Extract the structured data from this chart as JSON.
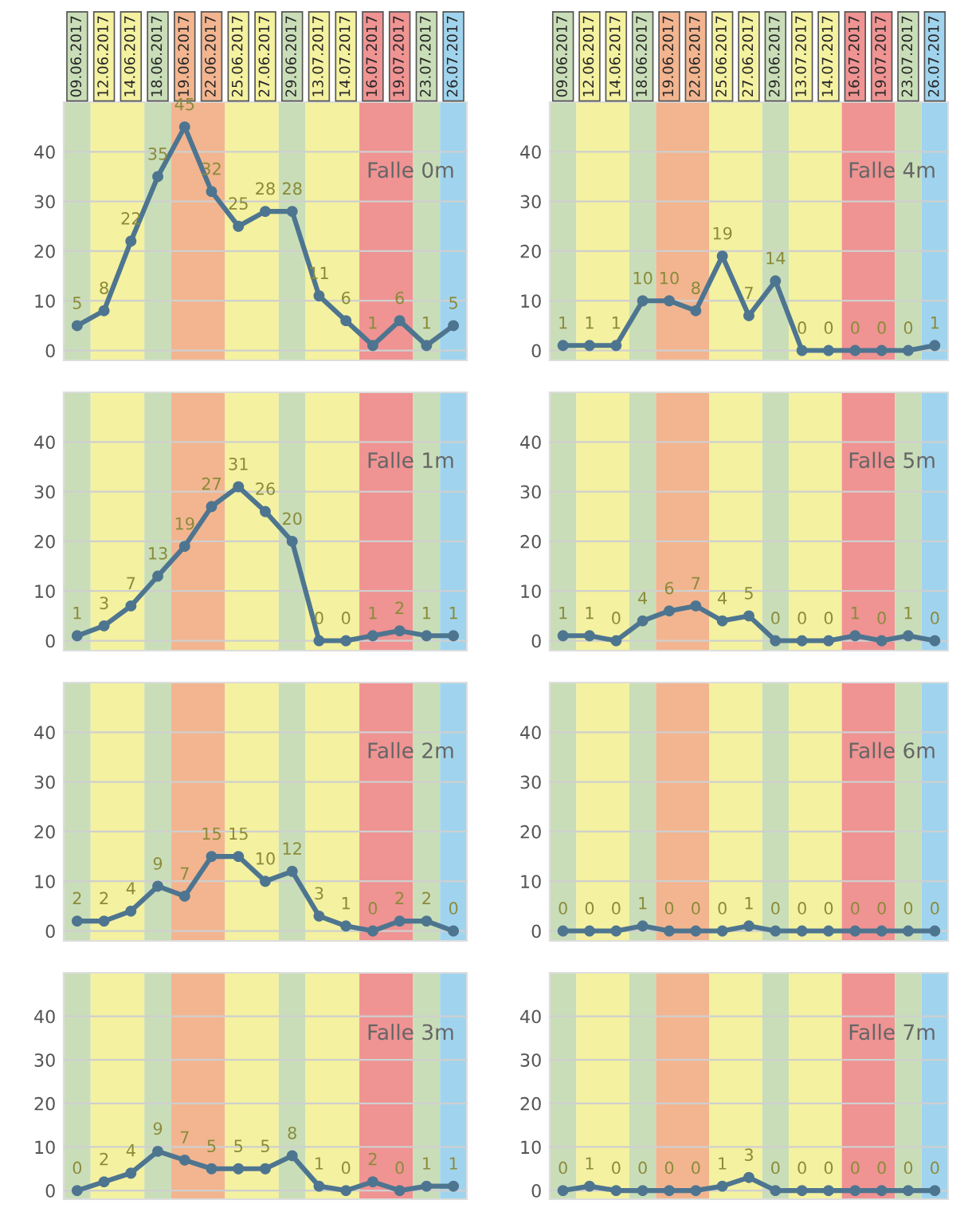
{
  "chart_data": [
    {
      "type": "line",
      "title": "Falle 0m",
      "categories": [
        "09.06.2017",
        "12.06.2017",
        "14.06.2017",
        "18.06.2017",
        "19.06.2017",
        "22.06.2017",
        "25.06.2017",
        "27.06.2017",
        "29.06.2017",
        "13.07.2017",
        "14.07.2017",
        "16.07.2017",
        "19.07.2017",
        "23.07.2017",
        "26.07.2017"
      ],
      "values": [
        5,
        8,
        22,
        35,
        45,
        32,
        25,
        28,
        28,
        11,
        6,
        1,
        6,
        1,
        5
      ],
      "color": "#4e7590",
      "marker": "circle",
      "data_labels": true,
      "ylim": [
        -2,
        50
      ],
      "yticks": [
        0,
        10,
        20,
        30,
        40
      ],
      "grid": "y",
      "bands": [
        {
          "axis": "x",
          "from": "09.06.2017",
          "to": "09.06.2017",
          "color": "#c9deb8"
        },
        {
          "axis": "x",
          "from": "12.06.2017",
          "to": "14.06.2017",
          "color": "#f4f1a0"
        },
        {
          "axis": "x",
          "from": "18.06.2017",
          "to": "18.06.2017",
          "color": "#c9deb8"
        },
        {
          "axis": "x",
          "from": "19.06.2017",
          "to": "22.06.2017",
          "color": "#f2b590"
        },
        {
          "axis": "x",
          "from": "25.06.2017",
          "to": "27.06.2017",
          "color": "#f4f1a0"
        },
        {
          "axis": "x",
          "from": "29.06.2017",
          "to": "29.06.2017",
          "color": "#c9deb8"
        },
        {
          "axis": "x",
          "from": "13.07.2017",
          "to": "14.07.2017",
          "color": "#f4f1a0"
        },
        {
          "axis": "x",
          "from": "16.07.2017",
          "to": "19.07.2017",
          "color": "#ef9393"
        },
        {
          "axis": "x",
          "from": "23.07.2017",
          "to": "23.07.2017",
          "color": "#c9deb8"
        },
        {
          "axis": "x",
          "from": "26.07.2017",
          "to": "26.07.2017",
          "color": "#a0d4ee"
        }
      ]
    },
    {
      "type": "line",
      "title": "Falle 4m",
      "categories": [
        "09.06.2017",
        "12.06.2017",
        "14.06.2017",
        "18.06.2017",
        "19.06.2017",
        "22.06.2017",
        "25.06.2017",
        "27.06.2017",
        "29.06.2017",
        "13.07.2017",
        "14.07.2017",
        "16.07.2017",
        "19.07.2017",
        "23.07.2017",
        "26.07.2017"
      ],
      "values": [
        1,
        1,
        1,
        10,
        10,
        8,
        19,
        7,
        14,
        0,
        0,
        0,
        0,
        0,
        1
      ],
      "color": "#4e7590",
      "marker": "circle",
      "data_labels": true,
      "ylim": [
        -2,
        50
      ],
      "yticks": [
        0,
        10,
        20,
        30,
        40
      ],
      "grid": "y",
      "bands": [
        {
          "axis": "x",
          "from": "09.06.2017",
          "to": "09.06.2017",
          "color": "#c9deb8"
        },
        {
          "axis": "x",
          "from": "12.06.2017",
          "to": "14.06.2017",
          "color": "#f4f1a0"
        },
        {
          "axis": "x",
          "from": "18.06.2017",
          "to": "18.06.2017",
          "color": "#c9deb8"
        },
        {
          "axis": "x",
          "from": "19.06.2017",
          "to": "22.06.2017",
          "color": "#f2b590"
        },
        {
          "axis": "x",
          "from": "25.06.2017",
          "to": "27.06.2017",
          "color": "#f4f1a0"
        },
        {
          "axis": "x",
          "from": "29.06.2017",
          "to": "29.06.2017",
          "color": "#c9deb8"
        },
        {
          "axis": "x",
          "from": "13.07.2017",
          "to": "14.07.2017",
          "color": "#f4f1a0"
        },
        {
          "axis": "x",
          "from": "16.07.2017",
          "to": "19.07.2017",
          "color": "#ef9393"
        },
        {
          "axis": "x",
          "from": "23.07.2017",
          "to": "23.07.2017",
          "color": "#c9deb8"
        },
        {
          "axis": "x",
          "from": "26.07.2017",
          "to": "26.07.2017",
          "color": "#a0d4ee"
        }
      ]
    },
    {
      "type": "line",
      "title": "Falle 1m",
      "categories": [
        "09.06.2017",
        "12.06.2017",
        "14.06.2017",
        "18.06.2017",
        "19.06.2017",
        "22.06.2017",
        "25.06.2017",
        "27.06.2017",
        "29.06.2017",
        "13.07.2017",
        "14.07.2017",
        "16.07.2017",
        "19.07.2017",
        "23.07.2017",
        "26.07.2017"
      ],
      "values": [
        1,
        3,
        7,
        13,
        19,
        27,
        31,
        26,
        20,
        0,
        0,
        1,
        2,
        1,
        1
      ],
      "color": "#4e7590",
      "marker": "circle",
      "data_labels": true,
      "ylim": [
        -2,
        50
      ],
      "yticks": [
        0,
        10,
        20,
        30,
        40
      ],
      "grid": "y",
      "tick_labels": "y",
      "bands": [
        {
          "axis": "x",
          "from": "09.06.2017",
          "to": "09.06.2017",
          "color": "#c9deb8"
        },
        {
          "axis": "x",
          "from": "12.06.2017",
          "to": "14.06.2017",
          "color": "#f4f1a0"
        },
        {
          "axis": "x",
          "from": "18.06.2017",
          "to": "18.06.2017",
          "color": "#c9deb8"
        },
        {
          "axis": "x",
          "from": "19.06.2017",
          "to": "22.06.2017",
          "color": "#f2b590"
        },
        {
          "axis": "x",
          "from": "25.06.2017",
          "to": "27.06.2017",
          "color": "#f4f1a0"
        },
        {
          "axis": "x",
          "from": "29.06.2017",
          "to": "29.06.2017",
          "color": "#c9deb8"
        },
        {
          "axis": "x",
          "from": "13.07.2017",
          "to": "14.07.2017",
          "color": "#f4f1a0"
        },
        {
          "axis": "x",
          "from": "16.07.2017",
          "to": "19.07.2017",
          "color": "#ef9393"
        },
        {
          "axis": "x",
          "from": "23.07.2017",
          "to": "23.07.2017",
          "color": "#c9deb8"
        },
        {
          "axis": "x",
          "from": "26.07.2017",
          "to": "26.07.2017",
          "color": "#a0d4ee"
        }
      ]
    },
    {
      "type": "line",
      "title": "Falle 5m",
      "categories": [
        "09.06.2017",
        "12.06.2017",
        "14.06.2017",
        "18.06.2017",
        "19.06.2017",
        "22.06.2017",
        "25.06.2017",
        "27.06.2017",
        "29.06.2017",
        "13.07.2017",
        "14.07.2017",
        "16.07.2017",
        "19.07.2017",
        "23.07.2017",
        "26.07.2017"
      ],
      "values": [
        1,
        1,
        0,
        4,
        6,
        7,
        4,
        5,
        0,
        0,
        0,
        1,
        0,
        1,
        0
      ],
      "color": "#4e7590",
      "marker": "circle",
      "data_labels": true,
      "ylim": [
        -2,
        50
      ],
      "yticks": [
        0,
        10,
        20,
        30,
        40
      ],
      "grid": "y",
      "tick_labels": "y",
      "bands": [
        {
          "axis": "x",
          "from": "09.06.2017",
          "to": "09.06.2017",
          "color": "#c9deb8"
        },
        {
          "axis": "x",
          "from": "12.06.2017",
          "to": "14.06.2017",
          "color": "#f4f1a0"
        },
        {
          "axis": "x",
          "from": "18.06.2017",
          "to": "18.06.2017",
          "color": "#c9deb8"
        },
        {
          "axis": "x",
          "from": "19.06.2017",
          "to": "22.06.2017",
          "color": "#f2b590"
        },
        {
          "axis": "x",
          "from": "25.06.2017",
          "to": "27.06.2017",
          "color": "#f4f1a0"
        },
        {
          "axis": "x",
          "from": "29.06.2017",
          "to": "29.06.2017",
          "color": "#c9deb8"
        },
        {
          "axis": "x",
          "from": "13.07.2017",
          "to": "14.07.2017",
          "color": "#f4f1a0"
        },
        {
          "axis": "x",
          "from": "16.07.2017",
          "to": "19.07.2017",
          "color": "#ef9393"
        },
        {
          "axis": "x",
          "from": "23.07.2017",
          "to": "23.07.2017",
          "color": "#c9deb8"
        },
        {
          "axis": "x",
          "from": "26.07.2017",
          "to": "26.07.2017",
          "color": "#a0d4ee"
        }
      ]
    },
    {
      "type": "line",
      "title": "Falle 2m",
      "categories": [
        "09.06.2017",
        "12.06.2017",
        "14.06.2017",
        "18.06.2017",
        "19.06.2017",
        "22.06.2017",
        "25.06.2017",
        "27.06.2017",
        "29.06.2017",
        "13.07.2017",
        "14.07.2017",
        "16.07.2017",
        "19.07.2017",
        "23.07.2017",
        "26.07.2017"
      ],
      "values": [
        2,
        2,
        4,
        9,
        7,
        15,
        15,
        10,
        12,
        3,
        1,
        0,
        2,
        2,
        0
      ],
      "color": "#4e7590",
      "marker": "circle",
      "data_labels": true,
      "ylim": [
        -2,
        50
      ],
      "yticks": [
        0,
        10,
        20,
        30,
        40
      ],
      "grid": "y",
      "tick_labels": "y",
      "bands": [
        {
          "axis": "x",
          "from": "09.06.2017",
          "to": "09.06.2017",
          "color": "#c9deb8"
        },
        {
          "axis": "x",
          "from": "12.06.2017",
          "to": "14.06.2017",
          "color": "#f4f1a0"
        },
        {
          "axis": "x",
          "from": "18.06.2017",
          "to": "18.06.2017",
          "color": "#c9deb8"
        },
        {
          "axis": "x",
          "from": "19.06.2017",
          "to": "22.06.2017",
          "color": "#f2b590"
        },
        {
          "axis": "x",
          "from": "25.06.2017",
          "to": "27.06.2017",
          "color": "#f4f1a0"
        },
        {
          "axis": "x",
          "from": "29.06.2017",
          "to": "29.06.2017",
          "color": "#c9deb8"
        },
        {
          "axis": "x",
          "from": "13.07.2017",
          "to": "14.07.2017",
          "color": "#f4f1a0"
        },
        {
          "axis": "x",
          "from": "16.07.2017",
          "to": "19.07.2017",
          "color": "#ef9393"
        },
        {
          "axis": "x",
          "from": "23.07.2017",
          "to": "23.07.2017",
          "color": "#c9deb8"
        },
        {
          "axis": "x",
          "from": "26.07.2017",
          "to": "26.07.2017",
          "color": "#a0d4ee"
        }
      ]
    },
    {
      "type": "line",
      "title": "Falle 6m",
      "categories": [
        "09.06.2017",
        "12.06.2017",
        "14.06.2017",
        "18.06.2017",
        "19.06.2017",
        "22.06.2017",
        "25.06.2017",
        "27.06.2017",
        "29.06.2017",
        "13.07.2017",
        "14.07.2017",
        "16.07.2017",
        "19.07.2017",
        "23.07.2017",
        "26.07.2017"
      ],
      "values": [
        0,
        0,
        0,
        1,
        0,
        0,
        0,
        1,
        0,
        0,
        0,
        0,
        0,
        0,
        0
      ],
      "color": "#4e7590",
      "marker": "circle",
      "data_labels": true,
      "ylim": [
        -2,
        50
      ],
      "yticks": [
        0,
        10,
        20,
        30,
        40
      ],
      "grid": "y",
      "tick_labels": "y",
      "bands": [
        {
          "axis": "x",
          "from": "09.06.2017",
          "to": "09.06.2017",
          "color": "#c9deb8"
        },
        {
          "axis": "x",
          "from": "12.06.2017",
          "to": "14.06.2017",
          "color": "#f4f1a0"
        },
        {
          "axis": "x",
          "from": "18.06.2017",
          "to": "18.06.2017",
          "color": "#c9deb8"
        },
        {
          "axis": "x",
          "from": "19.06.2017",
          "to": "22.06.2017",
          "color": "#f2b590"
        },
        {
          "axis": "x",
          "from": "25.06.2017",
          "to": "27.06.2017",
          "color": "#f4f1a0"
        },
        {
          "axis": "x",
          "from": "29.06.2017",
          "to": "29.06.2017",
          "color": "#c9deb8"
        },
        {
          "axis": "x",
          "from": "13.07.2017",
          "to": "14.07.2017",
          "color": "#f4f1a0"
        },
        {
          "axis": "x",
          "from": "16.07.2017",
          "to": "19.07.2017",
          "color": "#ef9393"
        },
        {
          "axis": "x",
          "from": "23.07.2017",
          "to": "23.07.2017",
          "color": "#c9deb8"
        },
        {
          "axis": "x",
          "from": "26.07.2017",
          "to": "26.07.2017",
          "color": "#a0d4ee"
        }
      ]
    },
    {
      "type": "line",
      "title": "Falle 3m",
      "categories": [
        "09.06.2017",
        "12.06.2017",
        "14.06.2017",
        "18.06.2017",
        "19.06.2017",
        "22.06.2017",
        "25.06.2017",
        "27.06.2017",
        "29.06.2017",
        "13.07.2017",
        "14.07.2017",
        "16.07.2017",
        "19.07.2017",
        "23.07.2017",
        "26.07.2017"
      ],
      "values": [
        0,
        2,
        4,
        9,
        7,
        5,
        5,
        5,
        8,
        1,
        0,
        2,
        0,
        1,
        1
      ],
      "color": "#4e7590",
      "marker": "circle",
      "data_labels": true,
      "ylim": [
        -2,
        50
      ],
      "yticks": [
        0,
        10,
        20,
        30,
        40
      ],
      "grid": "y",
      "tick_labels": "y",
      "bands": [
        {
          "axis": "x",
          "from": "09.06.2017",
          "to": "09.06.2017",
          "color": "#c9deb8"
        },
        {
          "axis": "x",
          "from": "12.06.2017",
          "to": "14.06.2017",
          "color": "#f4f1a0"
        },
        {
          "axis": "x",
          "from": "18.06.2017",
          "to": "18.06.2017",
          "color": "#c9deb8"
        },
        {
          "axis": "x",
          "from": "19.06.2017",
          "to": "22.06.2017",
          "color": "#f2b590"
        },
        {
          "axis": "x",
          "from": "25.06.2017",
          "to": "27.06.2017",
          "color": "#f4f1a0"
        },
        {
          "axis": "x",
          "from": "29.06.2017",
          "to": "29.06.2017",
          "color": "#c9deb8"
        },
        {
          "axis": "x",
          "from": "13.07.2017",
          "to": "14.07.2017",
          "color": "#f4f1a0"
        },
        {
          "axis": "x",
          "from": "16.07.2017",
          "to": "19.07.2017",
          "color": "#ef9393"
        },
        {
          "axis": "x",
          "from": "23.07.2017",
          "to": "23.07.2017",
          "color": "#c9deb8"
        },
        {
          "axis": "x",
          "from": "26.07.2017",
          "to": "26.07.2017",
          "color": "#a0d4ee"
        }
      ]
    },
    {
      "type": "line",
      "title": "Falle 7m",
      "categories": [
        "09.06.2017",
        "12.06.2017",
        "14.06.2017",
        "18.06.2017",
        "19.06.2017",
        "22.06.2017",
        "25.06.2017",
        "27.06.2017",
        "29.06.2017",
        "13.07.2017",
        "14.07.2017",
        "16.07.2017",
        "19.07.2017",
        "23.07.2017",
        "26.07.2017"
      ],
      "values": [
        0,
        1,
        0,
        0,
        0,
        0,
        1,
        3,
        0,
        0,
        0,
        0,
        0,
        0,
        0
      ],
      "color": "#4e7590",
      "marker": "circle",
      "data_labels": true,
      "ylim": [
        -2,
        50
      ],
      "yticks": [
        0,
        10,
        20,
        30,
        40
      ],
      "grid": "y",
      "tick_labels": "y",
      "bands": [
        {
          "axis": "x",
          "from": "09.06.2017",
          "to": "09.06.2017",
          "color": "#c9deb8"
        },
        {
          "axis": "x",
          "from": "12.06.2017",
          "to": "14.06.2017",
          "color": "#f4f1a0"
        },
        {
          "axis": "x",
          "from": "18.06.2017",
          "to": "18.06.2017",
          "color": "#c9deb8"
        },
        {
          "axis": "x",
          "from": "19.06.2017",
          "to": "22.06.2017",
          "color": "#f2b590"
        },
        {
          "axis": "x",
          "from": "25.06.2017",
          "to": "27.06.2017",
          "color": "#f4f1a0"
        },
        {
          "axis": "x",
          "from": "29.06.2017",
          "to": "29.06.2017",
          "color": "#c9deb8"
        },
        {
          "axis": "x",
          "from": "13.07.2017",
          "to": "14.07.2017",
          "color": "#f4f1a0"
        },
        {
          "axis": "x",
          "from": "16.07.2017",
          "to": "19.07.2017",
          "color": "#ef9393"
        },
        {
          "axis": "x",
          "from": "23.07.2017",
          "to": "23.07.2017",
          "color": "#c9deb8"
        },
        {
          "axis": "x",
          "from": "26.07.2017",
          "to": "26.07.2017",
          "color": "#a0d4ee"
        }
      ]
    }
  ]
}
